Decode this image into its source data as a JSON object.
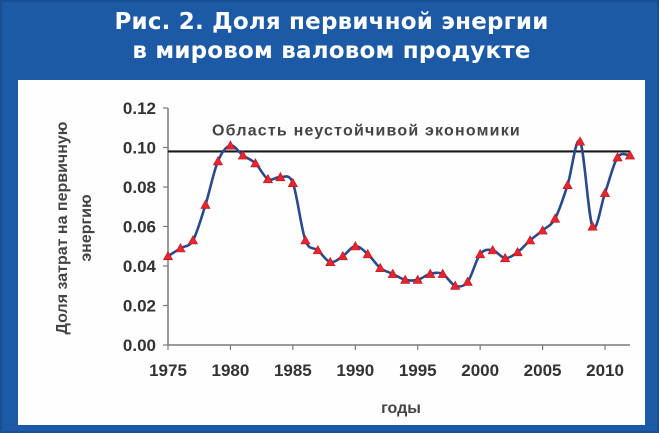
{
  "header": {
    "title_line1": "Рис. 2. Доля первичной энергии",
    "title_line2": "в мировом валовом продукте"
  },
  "colors": {
    "frame": "#1c5aa6",
    "line": "#2b4a8c",
    "marker": "#e8242e",
    "threshold": "#1a1a1a"
  },
  "chart_data": {
    "type": "line",
    "title": "",
    "xlabel": "годы",
    "ylabel_line1": "Доля затрат на первичную",
    "ylabel_line2": "энергию",
    "xlim": [
      1975,
      2012
    ],
    "ylim": [
      0,
      0.12
    ],
    "xticks": [
      1975,
      1980,
      1985,
      1990,
      1995,
      2000,
      2005,
      2010
    ],
    "xtick_labels": [
      "1975",
      "1980",
      "1985",
      "1990",
      "1995",
      "2000",
      "2005",
      "2010"
    ],
    "yticks": [
      0,
      0.02,
      0.04,
      0.06,
      0.08,
      0.1,
      0.12
    ],
    "ytick_labels": [
      "0.00",
      "0.02",
      "0.04",
      "0.06",
      "0.08",
      "0.10",
      "0.12"
    ],
    "grid": false,
    "threshold": {
      "value": 0.098,
      "label": "Область неустойчивой экономики"
    },
    "series": [
      {
        "x": [
          1975,
          1976,
          1977,
          1978,
          1979,
          1980,
          1981,
          1982,
          1983,
          1984,
          1985,
          1986,
          1987,
          1988,
          1989,
          1990,
          1991,
          1992,
          1993,
          1994,
          1995,
          1996,
          1997,
          1998,
          1999,
          2000,
          2001,
          2002,
          2003,
          2004,
          2005,
          2006,
          2007,
          2008,
          2009,
          2010,
          2011,
          2012
        ],
        "y": [
          0.045,
          0.049,
          0.053,
          0.071,
          0.093,
          0.101,
          0.096,
          0.092,
          0.084,
          0.085,
          0.082,
          0.053,
          0.048,
          0.042,
          0.045,
          0.05,
          0.046,
          0.039,
          0.036,
          0.033,
          0.033,
          0.036,
          0.036,
          0.03,
          0.032,
          0.046,
          0.048,
          0.044,
          0.047,
          0.053,
          0.058,
          0.064,
          0.081,
          0.103,
          0.06,
          0.077,
          0.095,
          0.096
        ]
      }
    ]
  }
}
